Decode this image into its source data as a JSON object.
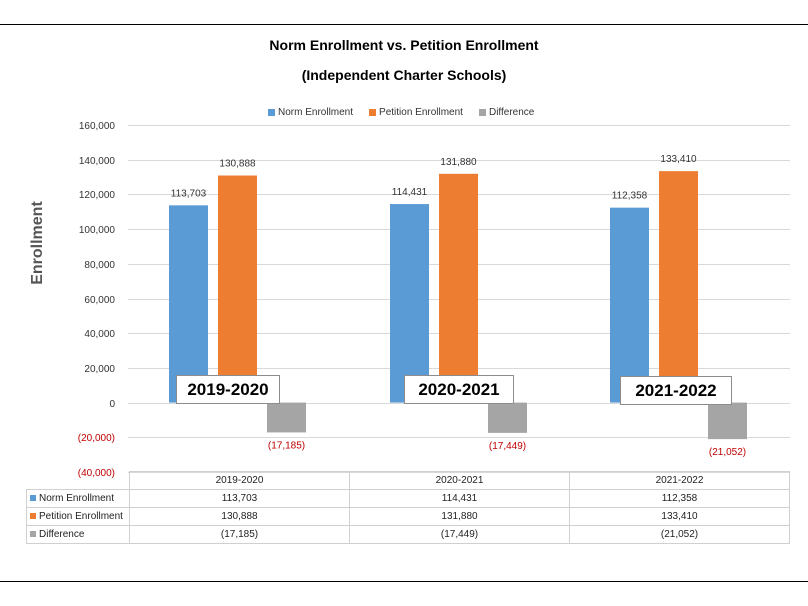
{
  "colors": {
    "norm": "#5b9bd5",
    "petition": "#ed7d31",
    "difference": "#a5a5a5",
    "negative_label": "#c00000",
    "grid": "#d9d9d9"
  },
  "chart_data": {
    "type": "bar",
    "title": "Norm Enrollment vs. Petition Enrollment",
    "subtitle": "(Independent Charter Schools)",
    "xlabel": "",
    "ylabel": "Enrollment",
    "categories": [
      "2019-2020",
      "2020-2021",
      "2021-2022"
    ],
    "series": [
      {
        "name": "Norm Enrollment",
        "values": [
          113703,
          114431,
          112358
        ],
        "labels": [
          "113,703",
          "114,431",
          "112,358"
        ]
      },
      {
        "name": "Petition Enrollment",
        "values": [
          130888,
          131880,
          133410
        ],
        "labels": [
          "130,888",
          "131,880",
          "133,410"
        ]
      },
      {
        "name": "Difference",
        "values": [
          -17185,
          -17449,
          -21052
        ],
        "labels": [
          "(17,185)",
          "(17,449)",
          "(21,052)"
        ]
      }
    ],
    "ylim": [
      -40000,
      160000
    ],
    "yticks": [
      160000,
      140000,
      120000,
      100000,
      80000,
      60000,
      40000,
      20000,
      0,
      -20000,
      -40000
    ],
    "ytick_labels": [
      "160,000",
      "140,000",
      "120,000",
      "100,000",
      "80,000",
      "60,000",
      "40,000",
      "20,000",
      "0",
      "(20,000)",
      "(40,000)"
    ],
    "grid": true,
    "legend": "top-center",
    "data_table": {
      "headers": [
        "2019-2020",
        "2020-2021",
        "2021-2022"
      ],
      "rows": [
        {
          "name": "Norm Enrollment",
          "cells": [
            "113,703",
            "114,431",
            "112,358"
          ]
        },
        {
          "name": "Petition Enrollment",
          "cells": [
            "130,888",
            "131,880",
            "133,410"
          ]
        },
        {
          "name": "Difference",
          "cells": [
            "(17,185)",
            "(17,449)",
            "(21,052)"
          ]
        }
      ]
    }
  }
}
